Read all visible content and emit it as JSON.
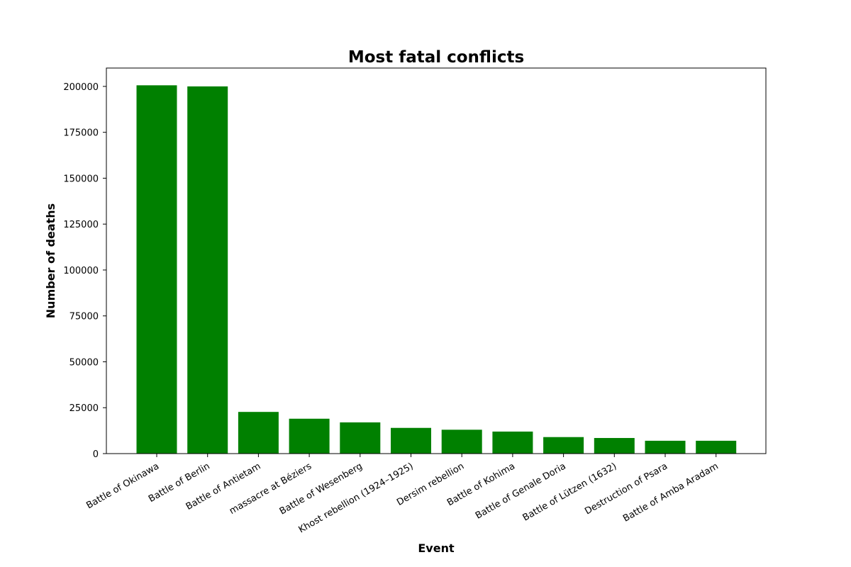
{
  "chart_data": {
    "type": "bar",
    "title": "Most fatal conflicts",
    "xlabel": "Event",
    "ylabel": "Number of deaths",
    "categories": [
      "Battle of Okinawa",
      "Battle of Berlin",
      "Battle of Antietam",
      "massacre at Béziers",
      "Battle of Wesenberg",
      "Khost rebellion (1924–1925)",
      "Dersim rebellion",
      "Battle of Kohima",
      "Battle of Genale Doria",
      "Battle of Lützen (1632)",
      "Destruction of Psara",
      "Battle of Amba Aradam"
    ],
    "values": [
      200600,
      200000,
      22700,
      19000,
      17000,
      14000,
      13000,
      12000,
      9000,
      8500,
      7000,
      7000
    ],
    "ylim": [
      0,
      210000
    ],
    "yticks": [
      0,
      25000,
      50000,
      75000,
      100000,
      125000,
      150000,
      175000,
      200000
    ],
    "bar_color": "#008000",
    "grid": false,
    "legend": "none"
  }
}
